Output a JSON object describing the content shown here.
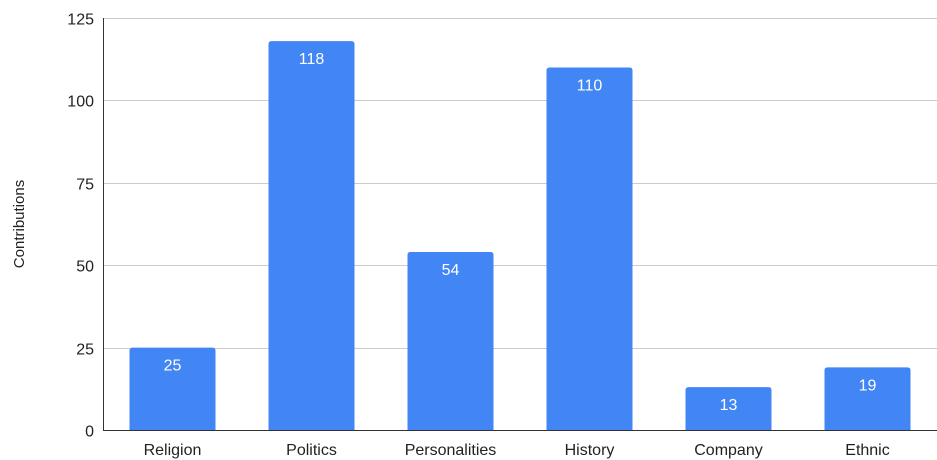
{
  "chart_data": {
    "type": "bar",
    "title": "",
    "xlabel": "",
    "ylabel": "Contributions",
    "categories": [
      "Religion",
      "Politics",
      "Personalities",
      "History",
      "Company",
      "Ethnic"
    ],
    "values": [
      25,
      118,
      54,
      110,
      13,
      19
    ],
    "data_labels": [
      "25",
      "118",
      "54",
      "110",
      "13",
      "19"
    ],
    "ylim": [
      0,
      125
    ],
    "yticks": [
      0,
      25,
      50,
      75,
      100,
      125
    ],
    "ytick_labels": [
      "0",
      "25",
      "50",
      "75",
      "100",
      "125"
    ],
    "grid": true,
    "legend": "none",
    "colors": {
      "bar": "#4285f4",
      "grid": "#cccccc",
      "axis": "#333333",
      "text": "#222222",
      "data_label": "#ffffff"
    }
  }
}
